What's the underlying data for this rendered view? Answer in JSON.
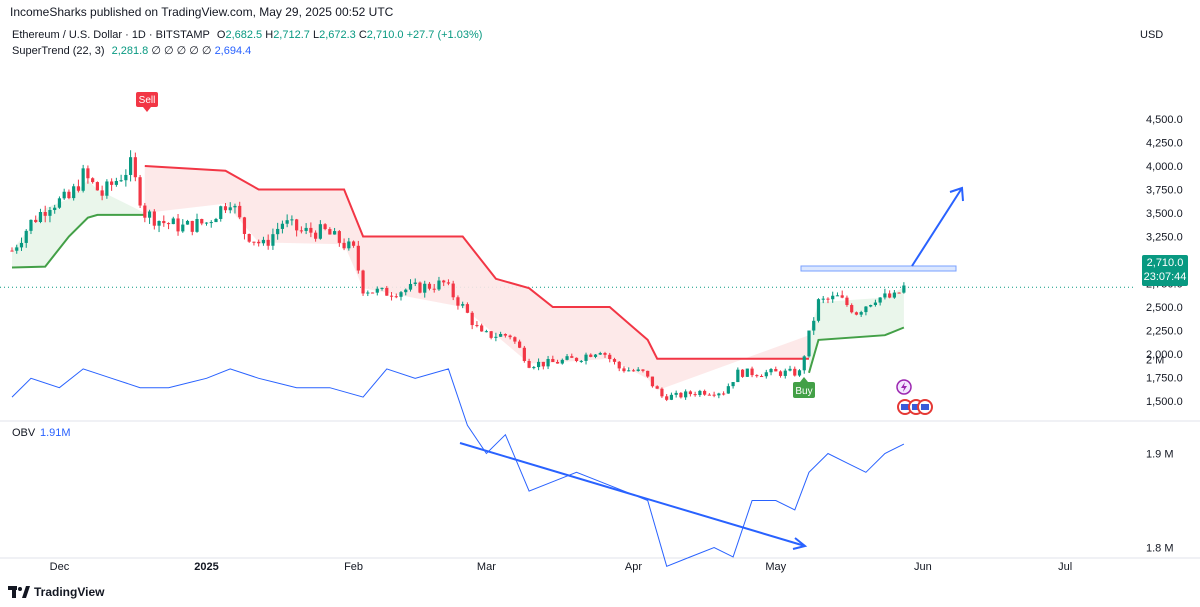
{
  "header": {
    "publisher": "IncomeSharks published on TradingView.com, May 29, 2025 00:52 UTC",
    "symbol": "Ethereum / U.S. Dollar · 1D · BITSTAMP",
    "open_label": "O",
    "open": "2,682.5",
    "high_label": "H",
    "high": "2,712.7",
    "low_label": "L",
    "low": "2,672.3",
    "close_label": "C",
    "close": "2,710.0",
    "change": "+27.7 (+1.03%)",
    "indicator": "SuperTrend (22, 3)",
    "st_value1": "2,281.8",
    "st_zeros": "∅ ∅ ∅ ∅ ∅",
    "st_value2": "2,694.4",
    "currency": "USD"
  },
  "price_tag": {
    "price": "2,710.0",
    "countdown": "23:07:44"
  },
  "obv": {
    "title": "OBV",
    "value": "1.91M"
  },
  "footer": {
    "brand": "TradingView"
  },
  "signals": {
    "sell": "Sell",
    "buy": "Buy"
  },
  "colors": {
    "up": "#089981",
    "down": "#f23645",
    "st_up": "#43a047",
    "st_down": "#f23645",
    "obv": "#2962ff",
    "fill_up": "#e8f5e9",
    "fill_down": "#fde7e7"
  },
  "chart_data": [
    {
      "type": "candlestick",
      "title": "Ethereum / U.S. Dollar · 1D · BITSTAMP",
      "y_ticks": [
        "4,500.0",
        "4,250.0",
        "4,000.0",
        "3,750.0",
        "3,500.0",
        "3,250.0",
        "3,000.0",
        "2,750.0",
        "2,500.0",
        "2,250.0",
        "2,000.0",
        "1,750.0",
        "1,500.0"
      ],
      "x_ticks": [
        "Dec",
        "2025",
        "Feb",
        "Mar",
        "Apr",
        "May",
        "Jun",
        "Jul"
      ],
      "ylim": [
        1400,
        4600
      ],
      "approx_close_path": [
        [
          "2024-11-21",
          3100
        ],
        [
          "2024-11-25",
          3400
        ],
        [
          "2024-11-29",
          3600
        ],
        [
          "2024-12-03",
          3650
        ],
        [
          "2024-12-06",
          3900
        ],
        [
          "2024-12-10",
          3700
        ],
        [
          "2024-12-16",
          4000
        ],
        [
          "2024-12-19",
          3500
        ],
        [
          "2024-12-23",
          3400
        ],
        [
          "2024-12-27",
          3350
        ],
        [
          "2025-01-01",
          3400
        ],
        [
          "2025-01-06",
          3650
        ],
        [
          "2025-01-09",
          3300
        ],
        [
          "2025-01-13",
          3150
        ],
        [
          "2025-01-17",
          3400
        ],
        [
          "2025-01-21",
          3300
        ],
        [
          "2025-01-26",
          3300
        ],
        [
          "2025-02-01",
          3100
        ],
        [
          "2025-02-03",
          2700
        ],
        [
          "2025-02-07",
          2650
        ],
        [
          "2025-02-14",
          2700
        ],
        [
          "2025-02-20",
          2750
        ],
        [
          "2025-02-24",
          2500
        ],
        [
          "2025-02-28",
          2200
        ],
        [
          "2025-03-03",
          2200
        ],
        [
          "2025-03-06",
          2200
        ],
        [
          "2025-03-10",
          1900
        ],
        [
          "2025-03-14",
          1900
        ],
        [
          "2025-03-20",
          1950
        ],
        [
          "2025-03-25",
          2050
        ],
        [
          "2025-03-29",
          1850
        ],
        [
          "2025-04-03",
          1800
        ],
        [
          "2025-04-07",
          1550
        ],
        [
          "2025-04-10",
          1550
        ],
        [
          "2025-04-15",
          1600
        ],
        [
          "2025-04-20",
          1600
        ],
        [
          "2025-04-23",
          1800
        ],
        [
          "2025-04-28",
          1800
        ],
        [
          "2025-05-02",
          1800
        ],
        [
          "2025-05-06",
          1800
        ],
        [
          "2025-05-08",
          2200
        ],
        [
          "2025-05-10",
          2550
        ],
        [
          "2025-05-14",
          2600
        ],
        [
          "2025-05-18",
          2450
        ],
        [
          "2025-05-22",
          2600
        ],
        [
          "2025-05-26",
          2600
        ],
        [
          "2025-05-28",
          2710
        ]
      ],
      "supertrend": {
        "up_segments": [
          [
            [
              "2024-11-21",
              2920
            ],
            [
              "2024-11-28",
              2930
            ],
            [
              "2024-12-03",
              3250
            ],
            [
              "2024-12-07",
              3450
            ],
            [
              "2024-12-09",
              3480
            ],
            [
              "2024-12-19",
              3480
            ]
          ],
          [
            [
              "2025-05-08",
              1800
            ],
            [
              "2025-05-10",
              2150
            ],
            [
              "2025-05-24",
              2200
            ],
            [
              "2025-05-28",
              2281.8
            ]
          ]
        ],
        "down_segments": [
          [
            [
              "2024-12-19",
              4000
            ],
            [
              "2025-01-05",
              3950
            ],
            [
              "2025-01-12",
              3750
            ],
            [
              "2025-01-30",
              3750
            ],
            [
              "2025-02-03",
              3250
            ],
            [
              "2025-02-24",
              3250
            ],
            [
              "2025-03-03",
              2800
            ],
            [
              "2025-03-10",
              2700
            ],
            [
              "2025-03-15",
              2500
            ],
            [
              "2025-03-27",
              2500
            ],
            [
              "2025-04-04",
              2150
            ],
            [
              "2025-04-06",
              1950
            ],
            [
              "2025-05-08",
              1950
            ]
          ]
        ]
      },
      "annotations": [
        "Sell",
        "Buy"
      ]
    },
    {
      "type": "line",
      "title": "OBV",
      "y_ticks": [
        "2 M",
        "1.9 M",
        "1.8 M"
      ],
      "ylim": [
        1.75,
        2.02
      ],
      "series": [
        {
          "name": "OBV",
          "points": [
            [
              "2024-11-21",
              1.96
            ],
            [
              "2024-11-25",
              1.98
            ],
            [
              "2024-12-01",
              1.97
            ],
            [
              "2024-12-06",
              1.99
            ],
            [
              "2024-12-12",
              1.98
            ],
            [
              "2024-12-18",
              1.97
            ],
            [
              "2024-12-24",
              1.97
            ],
            [
              "2025-01-01",
              1.98
            ],
            [
              "2025-01-06",
              1.99
            ],
            [
              "2025-01-12",
              1.98
            ],
            [
              "2025-01-20",
              1.97
            ],
            [
              "2025-01-27",
              1.97
            ],
            [
              "2025-02-03",
              1.96
            ],
            [
              "2025-02-08",
              1.99
            ],
            [
              "2025-02-14",
              1.98
            ],
            [
              "2025-02-21",
              1.99
            ],
            [
              "2025-02-25",
              1.93
            ],
            [
              "2025-03-01",
              1.9
            ],
            [
              "2025-03-05",
              1.92
            ],
            [
              "2025-03-10",
              1.86
            ],
            [
              "2025-03-15",
              1.87
            ],
            [
              "2025-03-20",
              1.88
            ],
            [
              "2025-03-25",
              1.87
            ],
            [
              "2025-03-30",
              1.86
            ],
            [
              "2025-04-04",
              1.85
            ],
            [
              "2025-04-08",
              1.78
            ],
            [
              "2025-04-13",
              1.79
            ],
            [
              "2025-04-18",
              1.8
            ],
            [
              "2025-04-22",
              1.79
            ],
            [
              "2025-04-26",
              1.85
            ],
            [
              "2025-05-01",
              1.85
            ],
            [
              "2025-05-05",
              1.84
            ],
            [
              "2025-05-08",
              1.88
            ],
            [
              "2025-05-12",
              1.9
            ],
            [
              "2025-05-16",
              1.89
            ],
            [
              "2025-05-20",
              1.88
            ],
            [
              "2025-05-24",
              1.9
            ],
            [
              "2025-05-28",
              1.91
            ]
          ]
        }
      ]
    }
  ]
}
